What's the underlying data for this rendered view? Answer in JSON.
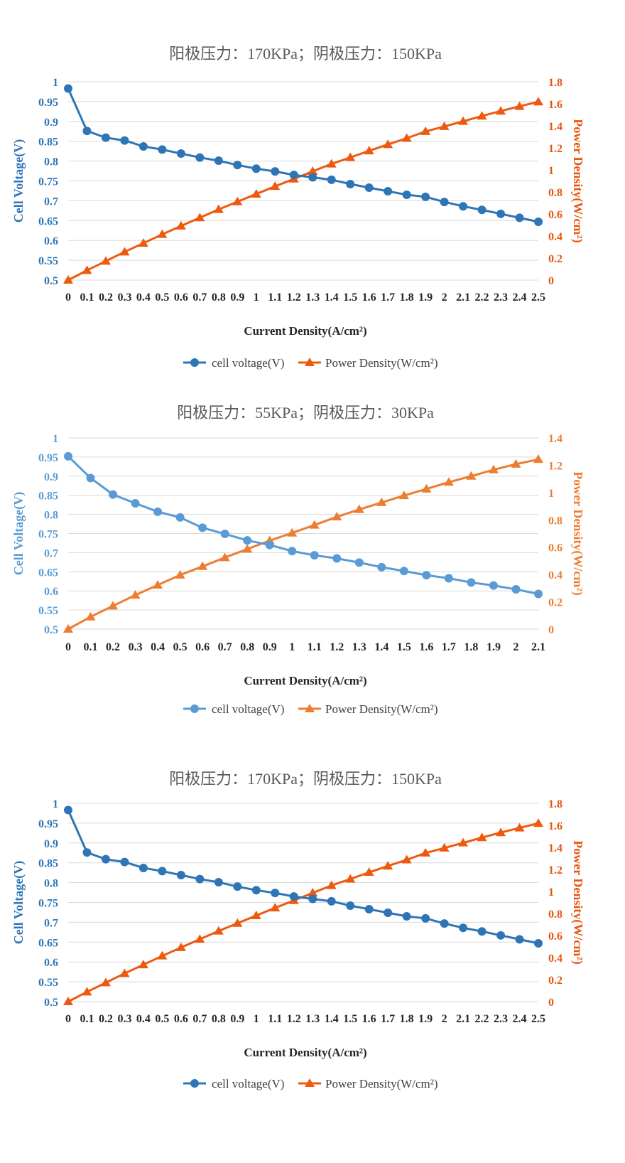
{
  "chart_data": [
    {
      "type": "line",
      "title": "阳极压力：170KPa；阴极压力：150KPa",
      "xlabel": "Current Density(A/cm²)",
      "ylabel": "Cell Voltage(V)",
      "y2label": "Power Density(W/cm²)",
      "x": [
        "0",
        "0.1",
        "0.2",
        "0.3",
        "0.4",
        "0.5",
        "0.6",
        "0.7",
        "0.8",
        "0.9",
        "1",
        "1.1",
        "1.2",
        "1.3",
        "1.4",
        "1.5",
        "1.6",
        "1.7",
        "1.8",
        "1.9",
        "2",
        "2.1",
        "2.2",
        "2.3",
        "2.4",
        "2.5"
      ],
      "ylim": [
        0.5,
        1
      ],
      "yticks": [
        "0.5",
        "0.55",
        "0.6",
        "0.65",
        "0.7",
        "0.75",
        "0.8",
        "0.85",
        "0.9",
        "0.95",
        "1"
      ],
      "y2lim": [
        0,
        1.8
      ],
      "y2ticks": [
        "0",
        "0.2",
        "0.4",
        "0.6",
        "0.8",
        "1",
        "1.2",
        "1.4",
        "1.6",
        "1.8"
      ],
      "colors": {
        "voltage": "#2e75b6",
        "power": "#ed5a0f",
        "left_axis": "#2e75b6",
        "right_axis": "#e8560f"
      },
      "series": [
        {
          "name": "cell voltage(V)",
          "axis": "left",
          "marker": "circle",
          "values": [
            0.983,
            0.876,
            0.859,
            0.852,
            0.837,
            0.829,
            0.819,
            0.809,
            0.801,
            0.79,
            0.781,
            0.774,
            0.765,
            0.759,
            0.753,
            0.742,
            0.733,
            0.724,
            0.715,
            0.71,
            0.697,
            0.686,
            0.677,
            0.667,
            0.657,
            0.647
          ]
        },
        {
          "name": "Power Density(W/cm²)",
          "axis": "right",
          "marker": "triangle",
          "values": [
            0,
            0.088,
            0.172,
            0.256,
            0.335,
            0.415,
            0.491,
            0.566,
            0.641,
            0.711,
            0.781,
            0.851,
            0.918,
            0.987,
            1.054,
            1.113,
            1.173,
            1.231,
            1.287,
            1.349,
            1.394,
            1.441,
            1.489,
            1.534,
            1.577,
            1.618
          ]
        }
      ]
    },
    {
      "type": "line",
      "title": "阳极压力：55KPa；阴极压力：30KPa",
      "xlabel": "Current Density(A/cm²)",
      "ylabel": "Cell Voltage(V)",
      "y2label": "Power Density(W/cm²)",
      "x": [
        "0",
        "0.1",
        "0.2",
        "0.3",
        "0.4",
        "0.5",
        "0.6",
        "0.7",
        "0.8",
        "0.9",
        "1",
        "1.1",
        "1.2",
        "1.3",
        "1.4",
        "1.5",
        "1.6",
        "1.7",
        "1.8",
        "1.9",
        "2",
        "2.1"
      ],
      "ylim": [
        0.5,
        1
      ],
      "yticks": [
        "0.5",
        "0.55",
        "0.6",
        "0.65",
        "0.7",
        "0.75",
        "0.8",
        "0.85",
        "0.9",
        "0.95",
        "1"
      ],
      "y2lim": [
        0,
        1.4
      ],
      "y2ticks": [
        "0",
        "0.2",
        "0.4",
        "0.6",
        "0.8",
        "1",
        "1.2",
        "1.4"
      ],
      "colors": {
        "voltage": "#5b9bd5",
        "power": "#ed7d31",
        "left_axis": "#5b9bd5",
        "right_axis": "#ed7d31"
      },
      "series": [
        {
          "name": "cell voltage(V)",
          "axis": "left",
          "marker": "circle",
          "values": [
            0.952,
            0.895,
            0.852,
            0.829,
            0.807,
            0.792,
            0.765,
            0.749,
            0.732,
            0.72,
            0.704,
            0.693,
            0.685,
            0.674,
            0.662,
            0.652,
            0.641,
            0.633,
            0.622,
            0.614,
            0.604,
            0.592
          ]
        },
        {
          "name": "Power Density(W/cm²)",
          "axis": "right",
          "marker": "triangle",
          "values": [
            0,
            0.09,
            0.17,
            0.249,
            0.323,
            0.396,
            0.459,
            0.524,
            0.586,
            0.648,
            0.704,
            0.762,
            0.822,
            0.876,
            0.927,
            0.978,
            1.026,
            1.076,
            1.12,
            1.167,
            1.208,
            1.243
          ]
        }
      ]
    },
    {
      "type": "line",
      "title": "阳极压力：170KPa；阴极压力：150KPa",
      "xlabel": "Current Density(A/cm²)",
      "ylabel": "Cell Voltage(V)",
      "y2label": "Power Density(W/cm²)",
      "x": [
        "0",
        "0.1",
        "0.2",
        "0.3",
        "0.4",
        "0.5",
        "0.6",
        "0.7",
        "0.8",
        "0.9",
        "1",
        "1.1",
        "1.2",
        "1.3",
        "1.4",
        "1.5",
        "1.6",
        "1.7",
        "1.8",
        "1.9",
        "2",
        "2.1",
        "2.2",
        "2.3",
        "2.4",
        "2.5"
      ],
      "ylim": [
        0.5,
        1
      ],
      "yticks": [
        "0.5",
        "0.55",
        "0.6",
        "0.65",
        "0.7",
        "0.75",
        "0.8",
        "0.85",
        "0.9",
        "0.95",
        "1"
      ],
      "y2lim": [
        0,
        1.8
      ],
      "y2ticks": [
        "0",
        "0.2",
        "0.4",
        "0.6",
        "0.8",
        "1",
        "1.2",
        "1.4",
        "1.6",
        "1.8"
      ],
      "colors": {
        "voltage": "#2e75b6",
        "power": "#ed5a0f",
        "left_axis": "#2e75b6",
        "right_axis": "#e8560f"
      },
      "series": [
        {
          "name": "cell voltage(V)",
          "axis": "left",
          "marker": "circle",
          "values": [
            0.983,
            0.876,
            0.859,
            0.852,
            0.837,
            0.829,
            0.819,
            0.809,
            0.801,
            0.79,
            0.781,
            0.774,
            0.765,
            0.759,
            0.753,
            0.742,
            0.733,
            0.724,
            0.715,
            0.71,
            0.697,
            0.686,
            0.677,
            0.667,
            0.657,
            0.647
          ]
        },
        {
          "name": "Power Density(W/cm²)",
          "axis": "right",
          "marker": "triangle",
          "values": [
            0,
            0.088,
            0.172,
            0.256,
            0.335,
            0.415,
            0.491,
            0.566,
            0.641,
            0.711,
            0.781,
            0.851,
            0.918,
            0.987,
            1.054,
            1.113,
            1.173,
            1.231,
            1.287,
            1.349,
            1.394,
            1.441,
            1.489,
            1.534,
            1.577,
            1.618
          ]
        }
      ]
    }
  ]
}
